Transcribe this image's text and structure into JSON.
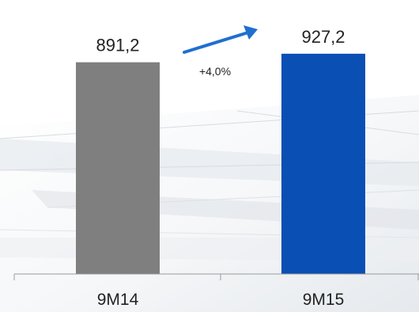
{
  "chart_data": {
    "type": "bar",
    "categories": [
      "9M14",
      "9M15"
    ],
    "values": [
      891.2,
      927.2
    ],
    "value_labels": [
      "891,2",
      "927,2"
    ],
    "annotations": [
      {
        "text": "+4,0%",
        "kind": "growth-arrow",
        "from": "9M14",
        "to": "9M15"
      }
    ],
    "title": "",
    "xlabel": "",
    "ylabel": "",
    "grid": false,
    "legend": "none",
    "bar_colors": [
      "#7f7f7f",
      "#0a4fb4"
    ],
    "arrow_color": "#1f6fcf",
    "axis_color": "#9a9a9a",
    "text_color": "#222222"
  }
}
